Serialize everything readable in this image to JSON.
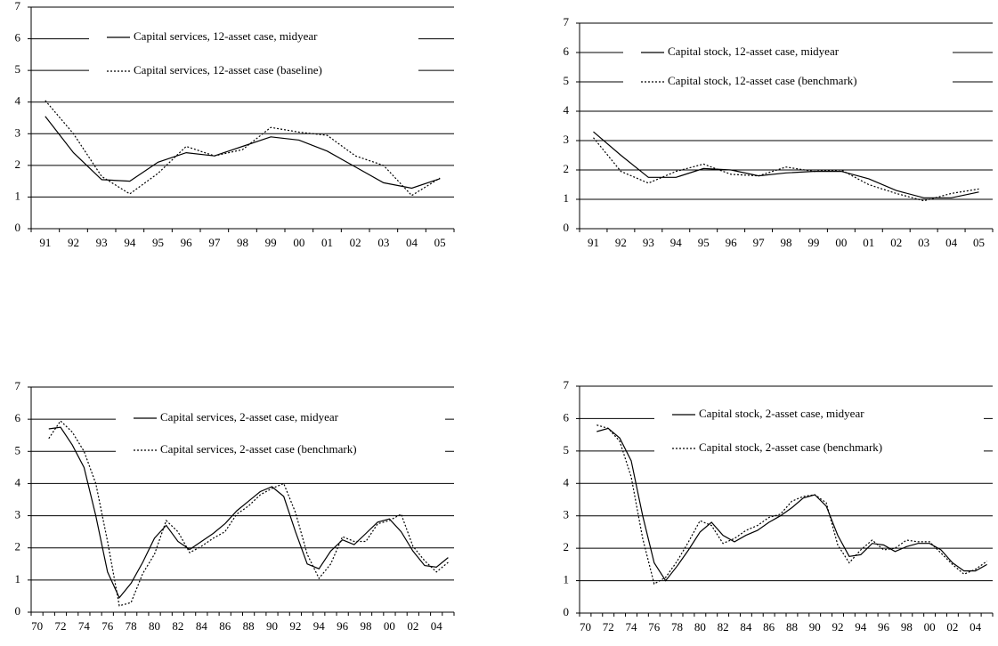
{
  "chart_data": [
    {
      "type": "line",
      "categories": [
        "91",
        "92",
        "93",
        "94",
        "95",
        "96",
        "97",
        "98",
        "99",
        "00",
        "01",
        "02",
        "03",
        "04",
        "05"
      ],
      "series": [
        {
          "name": "Capital services, 12-asset case, midyear",
          "color": "#000000",
          "dash": "solid",
          "values": [
            3.55,
            2.4,
            1.55,
            1.5,
            2.1,
            2.4,
            2.3,
            2.6,
            2.9,
            2.8,
            2.45,
            1.95,
            1.45,
            1.28,
            1.58
          ]
        },
        {
          "name": "Capital services, 12-asset case (baseline)",
          "color": "#000000",
          "dash": "dotted",
          "values": [
            4.05,
            3.0,
            1.65,
            1.1,
            1.75,
            2.6,
            2.3,
            2.5,
            3.2,
            3.05,
            2.95,
            2.3,
            2.0,
            1.05,
            1.6
          ]
        }
      ],
      "ylim": [
        0,
        7
      ],
      "yticks": [
        0,
        1,
        2,
        3,
        4,
        5,
        6,
        7
      ],
      "grid": true
    },
    {
      "type": "line",
      "categories": [
        "91",
        "92",
        "93",
        "94",
        "95",
        "96",
        "97",
        "98",
        "99",
        "00",
        "01",
        "02",
        "03",
        "04",
        "05"
      ],
      "series": [
        {
          "name": "Capital stock, 12-asset case, midyear",
          "color": "#000000",
          "dash": "solid",
          "values": [
            3.3,
            2.5,
            1.75,
            1.75,
            2.05,
            2.0,
            1.8,
            1.9,
            1.95,
            1.95,
            1.7,
            1.3,
            1.05,
            1.05,
            1.25
          ]
        },
        {
          "name": "Capital stock, 12-asset case (benchmark)",
          "color": "#000000",
          "dash": "dotted",
          "values": [
            3.1,
            1.95,
            1.55,
            1.95,
            2.2,
            1.85,
            1.8,
            2.1,
            1.95,
            2.0,
            1.5,
            1.2,
            0.95,
            1.2,
            1.35
          ]
        }
      ],
      "ylim": [
        0,
        7
      ],
      "yticks": [
        0,
        1,
        2,
        3,
        4,
        5,
        6,
        7
      ],
      "grid": true
    },
    {
      "type": "line",
      "categories": [
        "70",
        null,
        "72",
        null,
        "74",
        null,
        "76",
        null,
        "78",
        null,
        "80",
        null,
        "82",
        null,
        "84",
        null,
        "86",
        null,
        "88",
        null,
        "90",
        null,
        "92",
        null,
        "94",
        null,
        "96",
        null,
        "98",
        null,
        "00",
        null,
        "02",
        null,
        "04",
        null
      ],
      "series": [
        {
          "name": "Capital services, 2-asset case, midyear",
          "color": "#000000",
          "dash": "solid",
          "values": [
            null,
            5.7,
            5.75,
            5.2,
            4.5,
            3.0,
            1.25,
            0.45,
            0.9,
            1.55,
            2.3,
            2.7,
            2.2,
            1.95,
            2.2,
            2.45,
            2.75,
            3.15,
            3.45,
            3.75,
            3.9,
            3.6,
            2.5,
            1.5,
            1.35,
            1.9,
            2.25,
            2.1,
            2.45,
            2.8,
            2.9,
            2.5,
            1.9,
            1.45,
            1.4,
            1.7
          ]
        },
        {
          "name": "Capital services, 2-asset case (benchmark)",
          "color": "#000000",
          "dash": "dotted",
          "values": [
            null,
            5.4,
            5.95,
            5.6,
            5.0,
            4.0,
            2.2,
            0.2,
            0.3,
            1.2,
            1.8,
            2.85,
            2.5,
            1.85,
            2.05,
            2.3,
            2.5,
            3.05,
            3.3,
            3.65,
            3.85,
            4.0,
            3.1,
            1.8,
            1.05,
            1.5,
            2.35,
            2.2,
            2.2,
            2.75,
            2.85,
            3.05,
            2.05,
            1.6,
            1.25,
            1.55
          ]
        }
      ],
      "ylim": [
        0,
        7
      ],
      "yticks": [
        0,
        1,
        2,
        3,
        4,
        5,
        6,
        7
      ],
      "grid": true
    },
    {
      "type": "line",
      "categories": [
        "70",
        null,
        "72",
        null,
        "74",
        null,
        "76",
        null,
        "78",
        null,
        "80",
        null,
        "82",
        null,
        "84",
        null,
        "86",
        null,
        "88",
        null,
        "90",
        null,
        "92",
        null,
        "94",
        null,
        "96",
        null,
        "98",
        null,
        "00",
        null,
        "02",
        null,
        "04",
        null
      ],
      "series": [
        {
          "name": "Capital stock, 2-asset case, midyear",
          "color": "#000000",
          "dash": "solid",
          "values": [
            null,
            5.6,
            5.7,
            5.4,
            4.7,
            3.0,
            1.55,
            1.0,
            1.45,
            1.95,
            2.5,
            2.8,
            2.4,
            2.2,
            2.4,
            2.55,
            2.8,
            3.0,
            3.25,
            3.55,
            3.65,
            3.3,
            2.4,
            1.75,
            1.8,
            2.15,
            2.1,
            1.9,
            2.05,
            2.15,
            2.15,
            1.95,
            1.55,
            1.3,
            1.3,
            1.5
          ]
        },
        {
          "name": "Capital stock, 2-asset case (benchmark)",
          "color": "#000000",
          "dash": "dotted",
          "values": [
            null,
            5.8,
            5.7,
            5.3,
            4.2,
            2.3,
            0.9,
            1.1,
            1.6,
            2.2,
            2.85,
            2.7,
            2.15,
            2.3,
            2.55,
            2.7,
            2.95,
            3.05,
            3.45,
            3.6,
            3.65,
            3.4,
            2.1,
            1.55,
            1.95,
            2.25,
            1.95,
            2.0,
            2.25,
            2.2,
            2.2,
            1.85,
            1.5,
            1.2,
            1.35,
            1.6
          ]
        }
      ],
      "ylim": [
        0,
        7
      ],
      "yticks": [
        0,
        1,
        2,
        3,
        4,
        5,
        6,
        7
      ],
      "grid": true
    }
  ]
}
